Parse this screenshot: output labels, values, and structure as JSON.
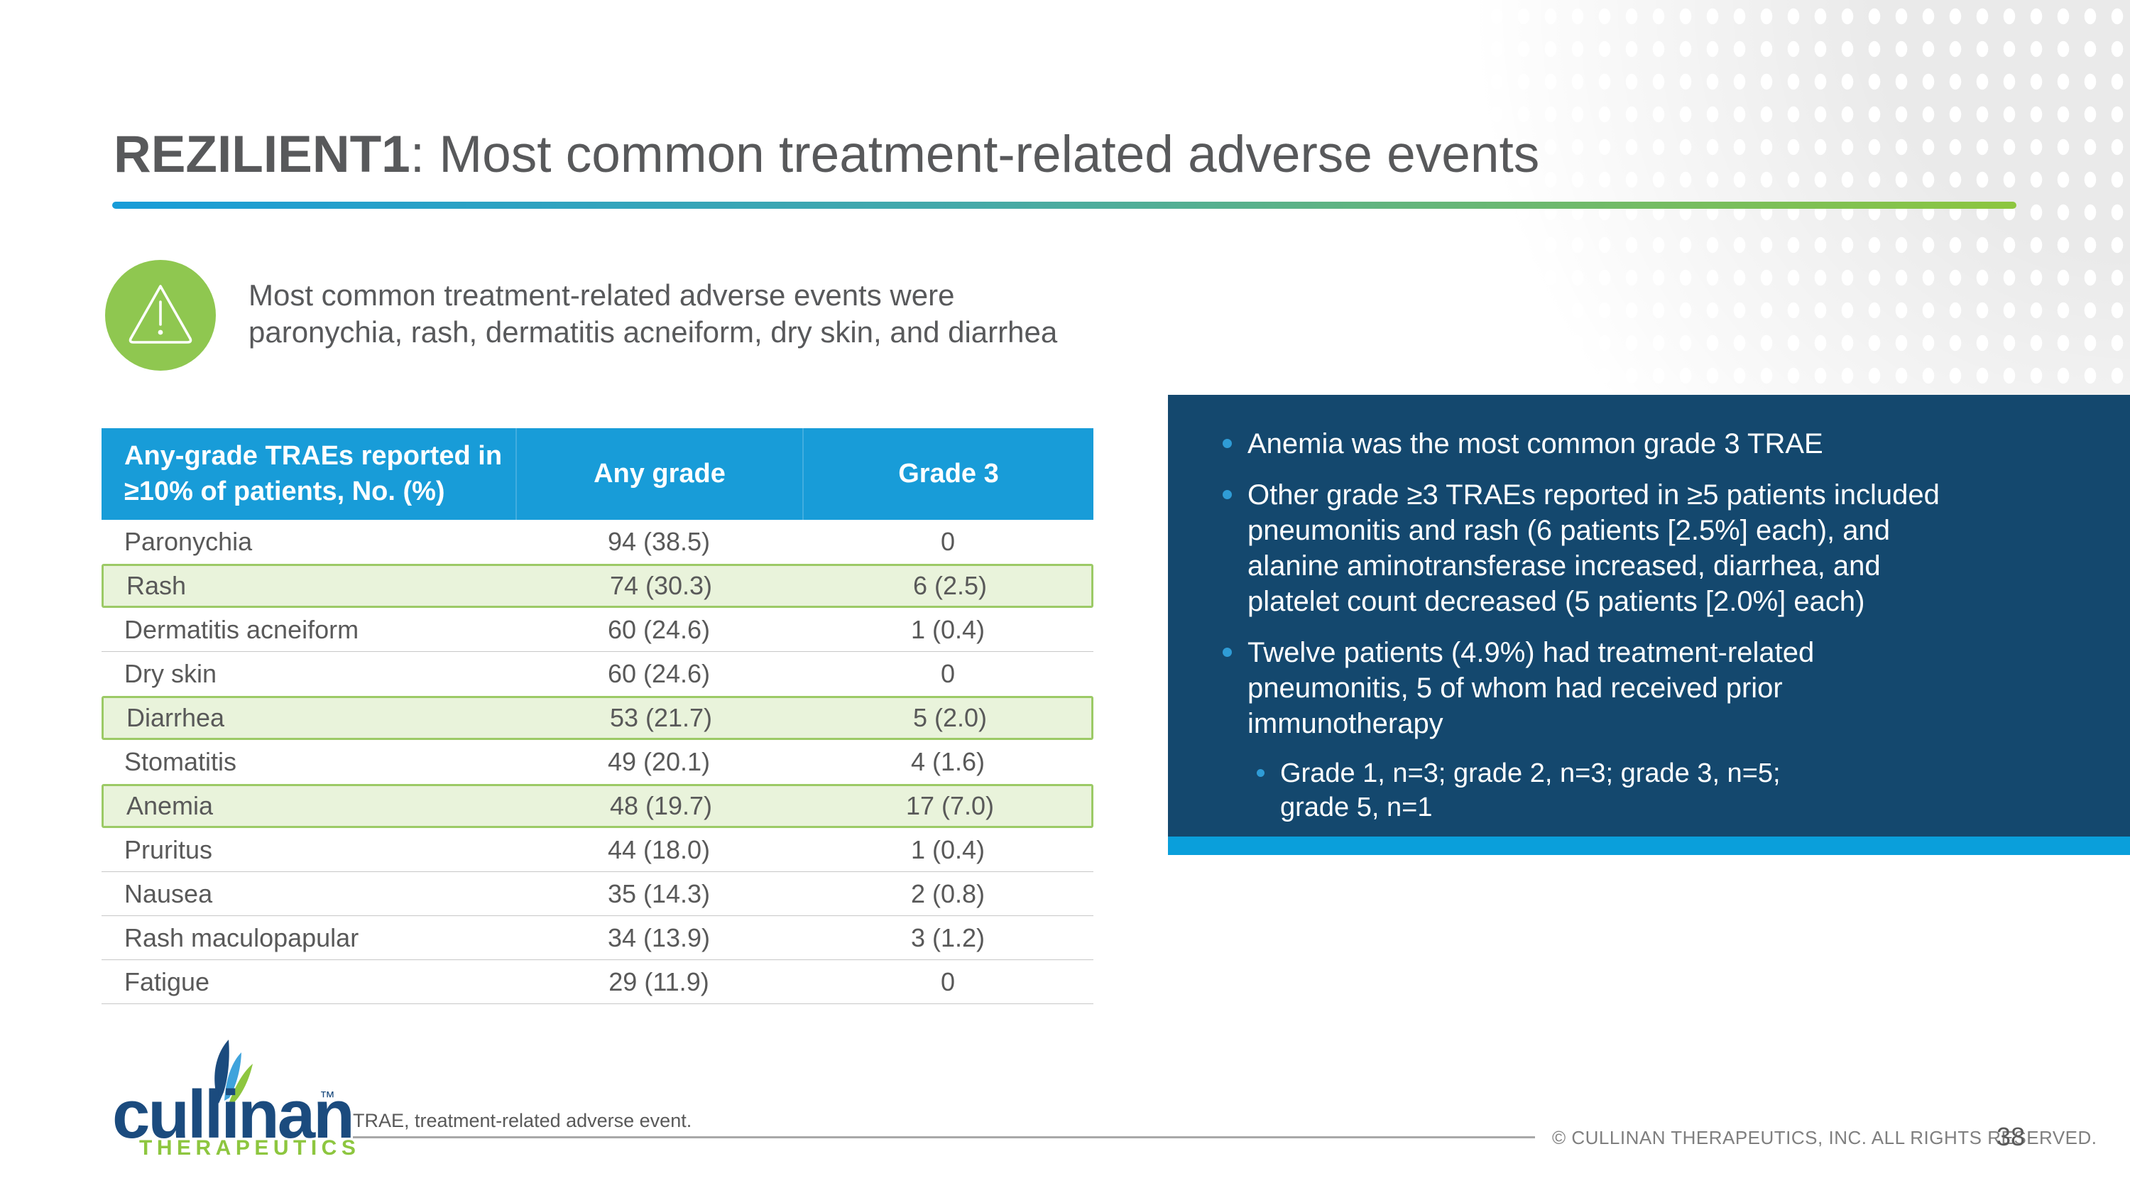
{
  "slide": {
    "title_prefix": "REZILIENT1",
    "title_rest": ": Most common treatment-related adverse events",
    "page_number": "38",
    "copyright": "© CULLINAN THERAPEUTICS, INC. ALL RIGHTS RESERVED.",
    "footnote": "TRAE, treatment-related adverse event."
  },
  "callout": {
    "icon": "warning-triangle-icon",
    "text": "Most common treatment-related adverse events were\nparonychia, rash, dermatitis acneiform, dry skin, and diarrhea"
  },
  "table": {
    "header": {
      "col1": "Any-grade TRAEs reported in\n≥10% of patients, No. (%)",
      "col2": "Any grade",
      "col3": "Grade 3"
    },
    "rows": [
      {
        "label": "Paronychia",
        "any_grade": "94 (38.5)",
        "grade_3": "0",
        "highlight": false
      },
      {
        "label": "Rash",
        "any_grade": "74 (30.3)",
        "grade_3": "6 (2.5)",
        "highlight": true
      },
      {
        "label": "Dermatitis acneiform",
        "any_grade": "60 (24.6)",
        "grade_3": "1 (0.4)",
        "highlight": false
      },
      {
        "label": "Dry skin",
        "any_grade": "60 (24.6)",
        "grade_3": "0",
        "highlight": false
      },
      {
        "label": "Diarrhea",
        "any_grade": "53 (21.7)",
        "grade_3": "5 (2.0)",
        "highlight": true
      },
      {
        "label": "Stomatitis",
        "any_grade": "49 (20.1)",
        "grade_3": "4 (1.6)",
        "highlight": false
      },
      {
        "label": "Anemia",
        "any_grade": "48 (19.7)",
        "grade_3": "17 (7.0)",
        "highlight": true
      },
      {
        "label": "Pruritus",
        "any_grade": "44 (18.0)",
        "grade_3": "1 (0.4)",
        "highlight": false
      },
      {
        "label": "Nausea",
        "any_grade": "35 (14.3)",
        "grade_3": "2 (0.8)",
        "highlight": false
      },
      {
        "label": "Rash maculopapular",
        "any_grade": "34 (13.9)",
        "grade_3": "3 (1.2)",
        "highlight": false
      },
      {
        "label": "Fatigue",
        "any_grade": "29 (11.9)",
        "grade_3": "0",
        "highlight": false
      }
    ]
  },
  "panel": {
    "bullets": [
      {
        "level": 1,
        "text": "Anemia was the most common grade 3 TRAE"
      },
      {
        "level": 1,
        "text": "Other grade ≥3 TRAEs reported in ≥5 patients included\npneumonitis and rash (6 patients [2.5%] each), and\nalanine aminotransferase increased, diarrhea, and\nplatelet count decreased (5 patients [2.0%] each)"
      },
      {
        "level": 1,
        "text": "Twelve patients (4.9%) had treatment-related\npneumonitis, 5 of whom had received prior\nimmunotherapy"
      },
      {
        "level": 2,
        "text": "Grade 1, n=3; grade 2, n=3; grade 3, n=5;\ngrade 5, n=1"
      }
    ]
  },
  "logo": {
    "wordmark": "cullinan",
    "tm": "™",
    "subtext": "THERAPEUTICS"
  },
  "colors": {
    "accent_blue": "#189CD8",
    "strip_cyan": "#0A9FDB",
    "accent_green": "#8DC63F",
    "icon_green": "#8FC750",
    "panel_navy": "#14486E",
    "bullet_blue": "#2F9CD6",
    "highlight_fill": "#E9F3DB",
    "highlight_border": "#9CCA66",
    "text_gray": "#58595B",
    "logo_navy": "#1B4B7E"
  }
}
